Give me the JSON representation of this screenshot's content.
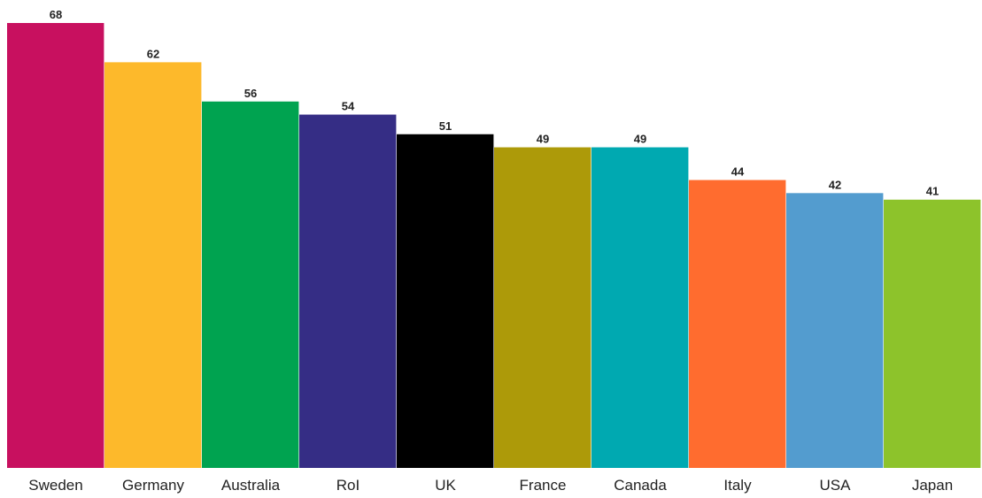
{
  "chart_data": {
    "type": "bar",
    "categories": [
      "Sweden",
      "Germany",
      "Australia",
      "RoI",
      "UK",
      "France",
      "Canada",
      "Italy",
      "USA",
      "Japan"
    ],
    "values": [
      68,
      62,
      56,
      54,
      51,
      49,
      49,
      44,
      42,
      41
    ],
    "colors": [
      "#c8105f",
      "#fdb92b",
      "#00a350",
      "#352d85",
      "#000000",
      "#ad9a09",
      "#00a9b1",
      "#ff6c2f",
      "#539ccf",
      "#8dc32b"
    ],
    "title": "",
    "xlabel": "",
    "ylabel": "",
    "ylim": [
      0,
      68
    ],
    "grid": false,
    "legend": "none",
    "data_labels": true
  }
}
